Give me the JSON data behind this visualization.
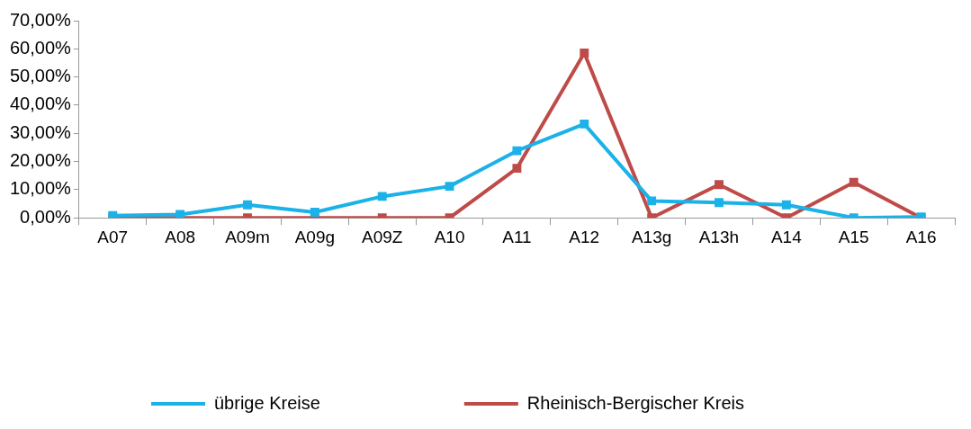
{
  "chart_data": {
    "type": "line",
    "categories": [
      "A07",
      "A08",
      "A09m",
      "A09g",
      "A09Z",
      "A10",
      "A11",
      "A12",
      "A13g",
      "A13h",
      "A14",
      "A15",
      "A16"
    ],
    "series": [
      {
        "name": "übrige Kreise",
        "color": "#1ab2e8",
        "values": [
          0.8,
          1.2,
          4.6,
          2.0,
          7.6,
          11.2,
          23.8,
          33.3,
          6.0,
          5.4,
          4.6,
          0.0,
          0.3
        ]
      },
      {
        "name": "Rheinisch-Bergischer Kreis",
        "color": "#be4b48",
        "values": [
          0,
          0,
          0,
          0,
          0,
          0,
          17.6,
          58.5,
          0,
          11.8,
          0,
          12.6,
          0
        ]
      }
    ],
    "ylim": [
      0,
      70
    ],
    "yticks": [
      {
        "value": 0,
        "label": "0,00%"
      },
      {
        "value": 10,
        "label": "10,00%"
      },
      {
        "value": 20,
        "label": "20,00%"
      },
      {
        "value": 30,
        "label": "30,00%"
      },
      {
        "value": 40,
        "label": "40,00%"
      },
      {
        "value": 50,
        "label": "50,00%"
      },
      {
        "value": 60,
        "label": "60,00%"
      },
      {
        "value": 70,
        "label": "70,00%"
      }
    ],
    "grid": false,
    "legend": "bottom",
    "marker": "square",
    "line_style": "solid"
  }
}
